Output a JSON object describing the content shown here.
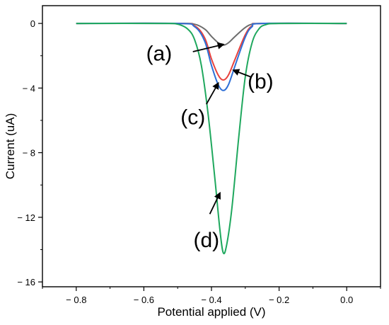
{
  "chart_data": {
    "type": "line",
    "title": "",
    "xlabel": "Potential applied (V)",
    "ylabel": "Current (uA)",
    "xlim": [
      -0.9,
      0.1
    ],
    "ylim": [
      -16.3,
      1.1
    ],
    "x_ticks": [
      -0.8,
      -0.6,
      -0.4,
      -0.2,
      0.0
    ],
    "x_tick_labels": [
      "− 0.8",
      "− 0.6",
      "− 0.4",
      "− 0.2",
      "0.0"
    ],
    "y_ticks": [
      0,
      -4,
      -8,
      -12,
      -16
    ],
    "y_tick_labels": [
      "0",
      "− 4",
      "− 8",
      "− 12",
      "− 16"
    ],
    "grid": false,
    "series": [
      {
        "x": [
          -0.8,
          -0.5,
          -0.45,
          -0.42,
          -0.4,
          -0.38,
          -0.365,
          -0.35,
          -0.33,
          -0.3,
          -0.28,
          -0.25,
          0.0
        ],
        "y": [
          0,
          0,
          -0.05,
          -0.35,
          -0.8,
          -1.2,
          -1.35,
          -1.2,
          -0.8,
          -0.25,
          -0.05,
          0,
          0
        ],
        "color": "#6d6d6d"
      },
      {
        "x": [
          -0.8,
          -0.5,
          -0.45,
          -0.42,
          -0.4,
          -0.38,
          -0.365,
          -0.35,
          -0.33,
          -0.3,
          -0.28,
          -0.25,
          0.0
        ],
        "y": [
          0,
          0,
          -0.15,
          -0.9,
          -2.2,
          -3.2,
          -3.5,
          -3.2,
          -2.2,
          -0.7,
          -0.15,
          0,
          0
        ],
        "color": "#e8413c"
      },
      {
        "x": [
          -0.8,
          -0.5,
          -0.45,
          -0.42,
          -0.4,
          -0.38,
          -0.365,
          -0.35,
          -0.33,
          -0.3,
          -0.28,
          -0.25,
          0.0
        ],
        "y": [
          0,
          0,
          -0.2,
          -1.1,
          -2.6,
          -3.8,
          -4.15,
          -3.8,
          -2.6,
          -0.85,
          -0.2,
          0,
          0
        ],
        "color": "#2e6fd6"
      },
      {
        "x": [
          -0.8,
          -0.55,
          -0.5,
          -0.47,
          -0.45,
          -0.43,
          -0.41,
          -0.39,
          -0.375,
          -0.365,
          -0.355,
          -0.34,
          -0.32,
          -0.3,
          -0.28,
          -0.26,
          -0.24,
          -0.2,
          0.0
        ],
        "y": [
          0,
          0,
          -0.05,
          -0.35,
          -1.0,
          -2.6,
          -5.6,
          -9.6,
          -12.8,
          -14.2,
          -13.7,
          -11.5,
          -7.2,
          -3.3,
          -1.2,
          -0.35,
          -0.08,
          0,
          0
        ],
        "color": "#1fa85e"
      }
    ],
    "annotations": [
      {
        "text": "(a)",
        "x": -0.555,
        "y": -1.85,
        "arrow_from": [
          -0.455,
          -1.75
        ],
        "arrow_to": [
          -0.365,
          -1.3
        ]
      },
      {
        "text": "(b)",
        "x": -0.255,
        "y": -3.6,
        "arrow_from": [
          -0.285,
          -3.3
        ],
        "arrow_to": [
          -0.335,
          -2.9
        ]
      },
      {
        "text": "(c)",
        "x": -0.455,
        "y": -5.8,
        "arrow_from": [
          -0.415,
          -5.0
        ],
        "arrow_to": [
          -0.38,
          -3.7
        ]
      },
      {
        "text": "(d)",
        "x": -0.415,
        "y": -13.4,
        "arrow_from": [
          -0.405,
          -11.8
        ],
        "arrow_to": [
          -0.375,
          -10.5
        ]
      }
    ]
  }
}
